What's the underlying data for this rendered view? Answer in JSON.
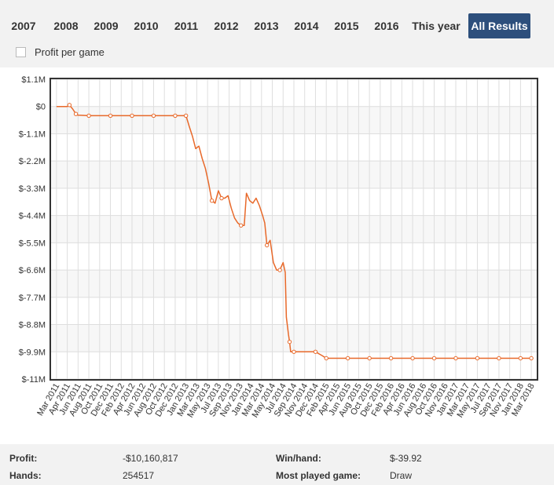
{
  "tabs": [
    {
      "label": "2007",
      "active": false
    },
    {
      "label": "2008",
      "active": false
    },
    {
      "label": "2009",
      "active": false
    },
    {
      "label": "2010",
      "active": false
    },
    {
      "label": "2011",
      "active": false
    },
    {
      "label": "2012",
      "active": false
    },
    {
      "label": "2013",
      "active": false
    },
    {
      "label": "2014",
      "active": false
    },
    {
      "label": "2015",
      "active": false
    },
    {
      "label": "2016",
      "active": false
    },
    {
      "label": "This year",
      "active": false
    },
    {
      "label": "All Results",
      "active": true
    }
  ],
  "profit_per_game": {
    "label": "Profit per game",
    "checked": false
  },
  "chart_data": {
    "type": "line",
    "line_color": "#e8692a",
    "ylim": [
      -11000000,
      1100000
    ],
    "yticks": [
      1100000,
      0,
      -1100000,
      -2200000,
      -3300000,
      -4400000,
      -5500000,
      -6600000,
      -7700000,
      -8800000,
      -9900000,
      -11000000
    ],
    "ytick_labels": [
      "$1.1M",
      "$0",
      "$-1.1M",
      "$-2.2M",
      "$-3.3M",
      "$-4.4M",
      "$-5.5M",
      "$-6.6M",
      "$-7.7M",
      "$-8.8M",
      "$-9.9M",
      "$-11M"
    ],
    "xtick_labels": [
      "Mar 2011",
      "Apr 2011",
      "Jun 2011",
      "Aug 2011",
      "Oct 2011",
      "Dec 2011",
      "Feb 2012",
      "Apr 2012",
      "Jun 2012",
      "Aug 2012",
      "Oct 2012",
      "Dec 2012",
      "Jan 2013",
      "Mar 2013",
      "May 2013",
      "Jul 2013",
      "Sep 2013",
      "Nov 2013",
      "Jan 2014",
      "Mar 2014",
      "May 2014",
      "Jul 2014",
      "Sep 2014",
      "Nov 2014",
      "Dec 2014",
      "Feb 2015",
      "Apr 2015",
      "Jun 2015",
      "Aug 2015",
      "Oct 2015",
      "Dec 2015",
      "Feb 2016",
      "Apr 2016",
      "Jun 2016",
      "Aug 2016",
      "Oct 2016",
      "Nov 2016",
      "Jan 2017",
      "Mar 2017",
      "May 2017",
      "Jul 2017",
      "Sep 2017",
      "Nov 2017",
      "Jan 2018",
      "Mar 2018"
    ],
    "grid": true,
    "series": [
      {
        "points": [
          [
            0,
            0
          ],
          [
            1,
            0
          ],
          [
            1.2,
            60000
          ],
          [
            1.5,
            -100000
          ],
          [
            1.8,
            -300000
          ],
          [
            2,
            -350000
          ],
          [
            3,
            -370000
          ],
          [
            4,
            -370000
          ],
          [
            5,
            -370000
          ],
          [
            6,
            -370000
          ],
          [
            7,
            -370000
          ],
          [
            8,
            -370000
          ],
          [
            9,
            -370000
          ],
          [
            10,
            -370000
          ],
          [
            11,
            -370000
          ],
          [
            12,
            -370000
          ],
          [
            12.3,
            -800000
          ],
          [
            12.6,
            -1200000
          ],
          [
            12.9,
            -1700000
          ],
          [
            13.2,
            -1600000
          ],
          [
            13.5,
            -2100000
          ],
          [
            13.8,
            -2500000
          ],
          [
            14.1,
            -3100000
          ],
          [
            14.4,
            -3800000
          ],
          [
            14.7,
            -3900000
          ],
          [
            15.0,
            -3400000
          ],
          [
            15.3,
            -3700000
          ],
          [
            15.6,
            -3700000
          ],
          [
            15.9,
            -3600000
          ],
          [
            16.2,
            -4100000
          ],
          [
            16.5,
            -4500000
          ],
          [
            16.8,
            -4700000
          ],
          [
            17.1,
            -4800000
          ],
          [
            17.4,
            -4800000
          ],
          [
            17.6,
            -3500000
          ],
          [
            17.9,
            -3800000
          ],
          [
            18.2,
            -3900000
          ],
          [
            18.5,
            -3700000
          ],
          [
            18.8,
            -4000000
          ],
          [
            19.1,
            -4400000
          ],
          [
            19.3,
            -4700000
          ],
          [
            19.5,
            -5600000
          ],
          [
            19.8,
            -5400000
          ],
          [
            20.1,
            -6300000
          ],
          [
            20.4,
            -6600000
          ],
          [
            20.7,
            -6600000
          ],
          [
            21.0,
            -6300000
          ],
          [
            21.2,
            -6700000
          ],
          [
            21.3,
            -8500000
          ],
          [
            21.5,
            -9200000
          ],
          [
            21.6,
            -9500000
          ],
          [
            21.7,
            -9900000
          ],
          [
            22,
            -9900000
          ],
          [
            23,
            -9900000
          ],
          [
            24,
            -9900000
          ],
          [
            24.6,
            -10050000
          ],
          [
            25,
            -10160817
          ],
          [
            26,
            -10160817
          ],
          [
            27,
            -10160817
          ],
          [
            28,
            -10160817
          ],
          [
            29,
            -10160817
          ],
          [
            30,
            -10160817
          ],
          [
            31,
            -10160817
          ],
          [
            32,
            -10160817
          ],
          [
            33,
            -10160817
          ],
          [
            34,
            -10160817
          ],
          [
            35,
            -10160817
          ],
          [
            36,
            -10160817
          ],
          [
            37,
            -10160817
          ],
          [
            38,
            -10160817
          ],
          [
            39,
            -10160817
          ],
          [
            40,
            -10160817
          ],
          [
            41,
            -10160817
          ],
          [
            42,
            -10160817
          ],
          [
            43,
            -10160817
          ],
          [
            44,
            -10160817
          ]
        ],
        "markers": [
          [
            1.2,
            60000
          ],
          [
            1.8,
            -300000
          ],
          [
            3,
            -370000
          ],
          [
            5,
            -370000
          ],
          [
            7,
            -370000
          ],
          [
            9,
            -370000
          ],
          [
            11,
            -370000
          ],
          [
            12,
            -370000
          ],
          [
            14.4,
            -3800000
          ],
          [
            15.3,
            -3700000
          ],
          [
            17.1,
            -4800000
          ],
          [
            19.5,
            -5600000
          ],
          [
            20.7,
            -6600000
          ],
          [
            21.6,
            -9500000
          ],
          [
            22,
            -9900000
          ],
          [
            24,
            -9900000
          ],
          [
            25,
            -10160817
          ],
          [
            27,
            -10160817
          ],
          [
            29,
            -10160817
          ],
          [
            31,
            -10160817
          ],
          [
            33,
            -10160817
          ],
          [
            35,
            -10160817
          ],
          [
            37,
            -10160817
          ],
          [
            39,
            -10160817
          ],
          [
            41,
            -10160817
          ],
          [
            43,
            -10160817
          ],
          [
            44,
            -10160817
          ]
        ]
      }
    ]
  },
  "stats": {
    "profit_label": "Profit:",
    "profit_value": "-$10,160,817",
    "hands_label": "Hands:",
    "hands_value": "254517",
    "winhand_label": "Win/hand:",
    "winhand_value": "$-39.92",
    "most_played_label": "Most played game:",
    "most_played_value": "Draw"
  }
}
